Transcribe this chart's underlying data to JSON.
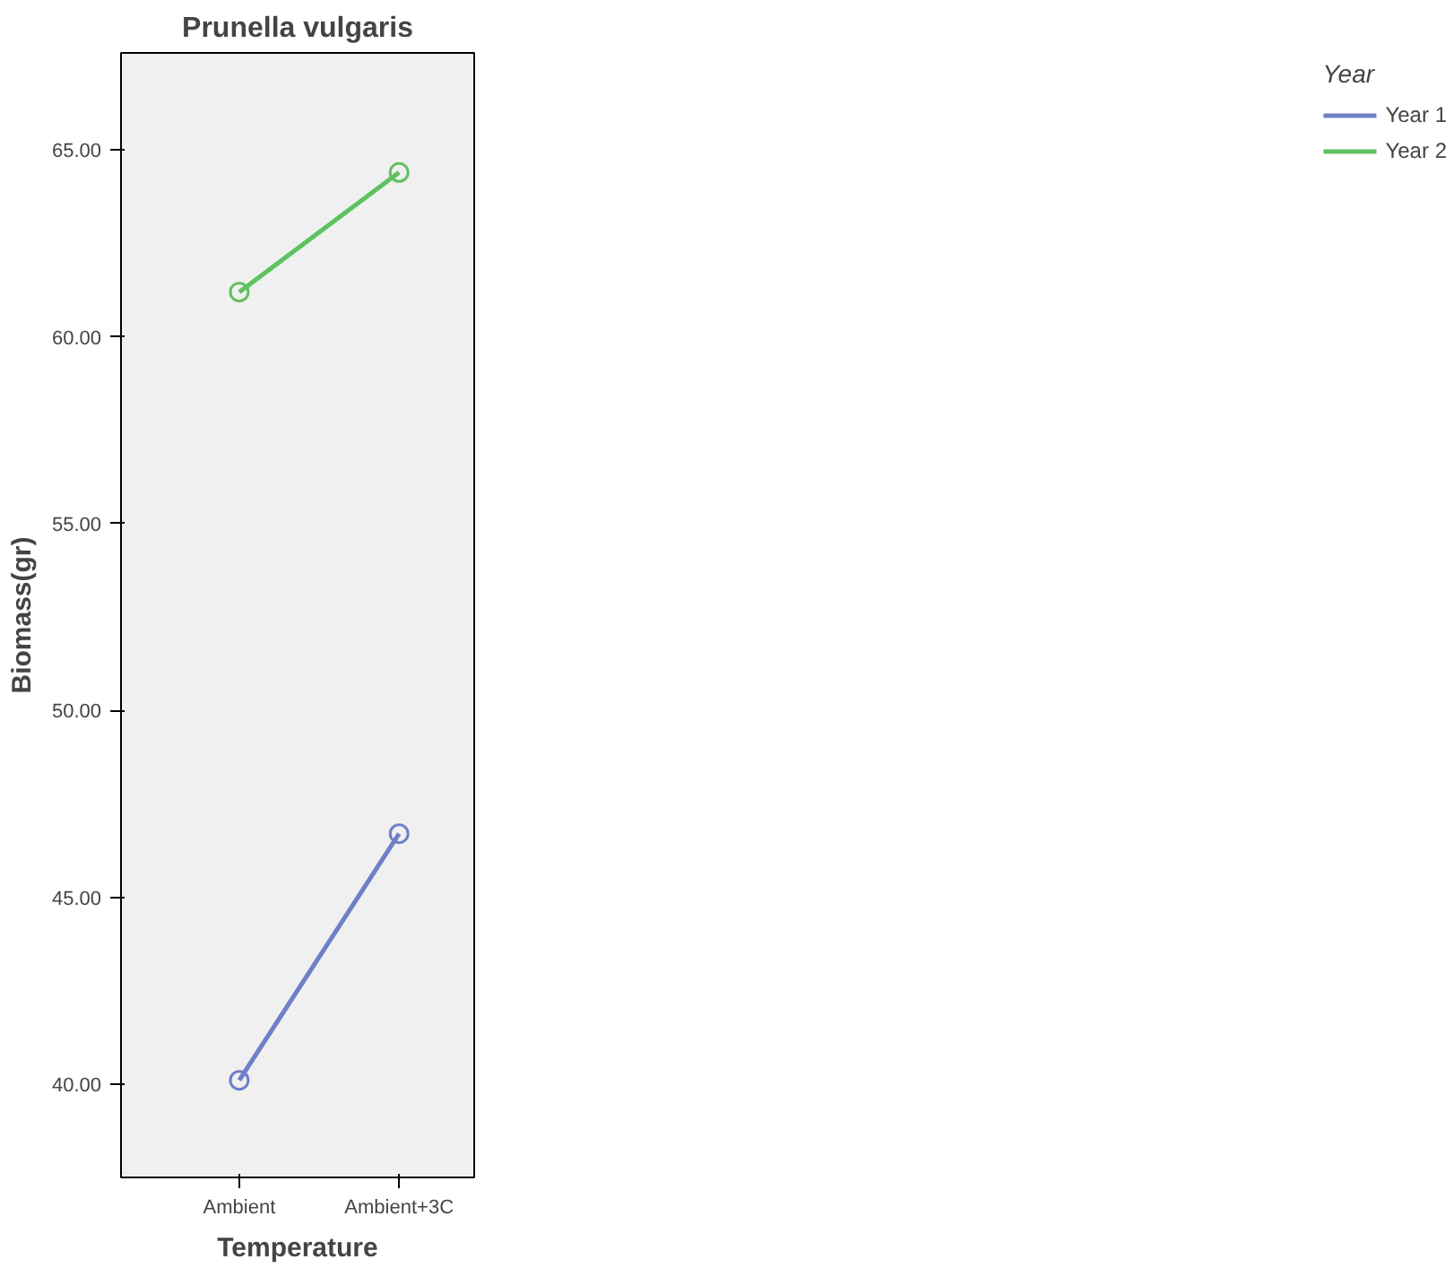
{
  "chart_data": {
    "type": "line",
    "title": "Prunella vulgaris",
    "xlabel": "Temperature",
    "ylabel": "Biomass(gr)",
    "legend_title": "Year",
    "categories": [
      "Ambient",
      "Ambient+3C"
    ],
    "series": [
      {
        "name": "Year 1",
        "color": "#6f80c8",
        "values": [
          40.1,
          46.7
        ]
      },
      {
        "name": "Year 2",
        "color": "#5fc15f",
        "values": [
          61.2,
          64.4
        ]
      }
    ],
    "ylim": [
      37.5,
      67.6
    ],
    "yticks": [
      {
        "value": 40,
        "label": "40.00"
      },
      {
        "value": 45,
        "label": "45.00"
      },
      {
        "value": 50,
        "label": "50.00"
      },
      {
        "value": 55,
        "label": "55.00"
      },
      {
        "value": 60,
        "label": "60.00"
      },
      {
        "value": 65,
        "label": "65.00"
      }
    ],
    "grid": false,
    "legend": "top right",
    "marker": "circle",
    "line_style": "solid"
  }
}
